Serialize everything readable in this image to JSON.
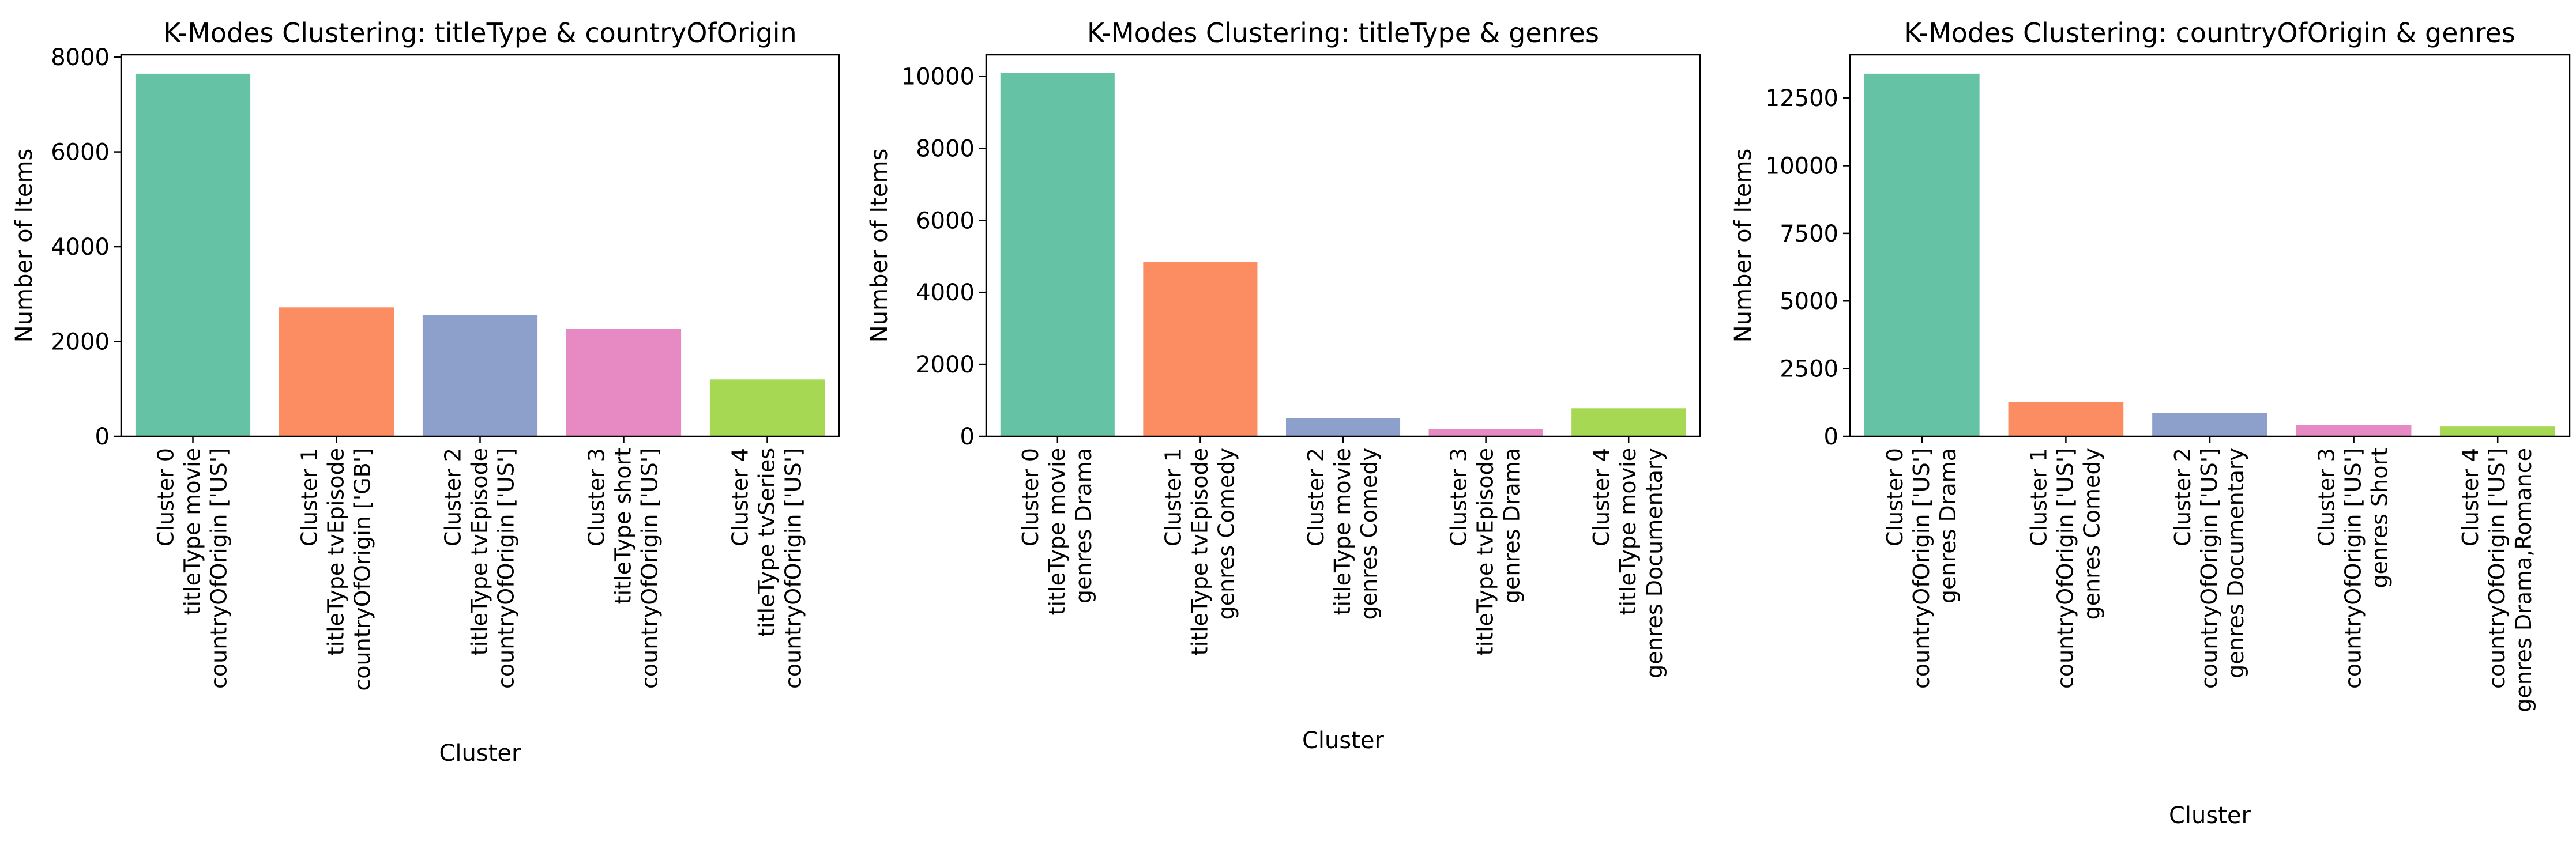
{
  "chart_data": [
    {
      "type": "bar",
      "title": "K-Modes Clustering: titleType & countryOfOrigin",
      "xlabel": "Cluster",
      "ylabel": "Number of Items",
      "ylim": [
        0,
        8050
      ],
      "yticks": [
        0,
        2000,
        4000,
        6000,
        8000
      ],
      "grid": false,
      "categories": [
        [
          "Cluster 0",
          "titleType        movie",
          "countryOfOrigin     ['US']"
        ],
        [
          "Cluster 1",
          "titleType     tvEpisode",
          "countryOfOrigin     ['GB']"
        ],
        [
          "Cluster 2",
          "titleType     tvEpisode",
          "countryOfOrigin     ['US']"
        ],
        [
          "Cluster 3",
          "titleType        short",
          "countryOfOrigin     ['US']"
        ],
        [
          "Cluster 4",
          "titleType      tvSeries",
          "countryOfOrigin     ['US']"
        ]
      ],
      "values": [
        7650,
        2720,
        2560,
        2270,
        1200
      ],
      "colors": [
        "#66c2a5",
        "#fc8d62",
        "#8da0cb",
        "#e78ac3",
        "#a6d854"
      ]
    },
    {
      "type": "bar",
      "title": "K-Modes Clustering: titleType & genres",
      "xlabel": "Cluster",
      "ylabel": "Number of Items",
      "ylim": [
        0,
        10600
      ],
      "yticks": [
        0,
        2000,
        4000,
        6000,
        8000,
        10000
      ],
      "grid": false,
      "categories": [
        [
          "Cluster 0",
          "titleType      movie",
          "genres        Drama"
        ],
        [
          "Cluster 1",
          "titleType  tvEpisode",
          "genres       Comedy"
        ],
        [
          "Cluster 2",
          "titleType      movie",
          "genres       Comedy"
        ],
        [
          "Cluster 3",
          "titleType  tvEpisode",
          "genres        Drama"
        ],
        [
          "Cluster 4",
          "titleType      movie",
          "genres   Documentary"
        ]
      ],
      "values": [
        10100,
        4840,
        500,
        200,
        780
      ],
      "colors": [
        "#66c2a5",
        "#fc8d62",
        "#8da0cb",
        "#e78ac3",
        "#a6d854"
      ]
    },
    {
      "type": "bar",
      "title": "K-Modes Clustering: countryOfOrigin & genres",
      "xlabel": "Cluster",
      "ylabel": "Number of Items",
      "ylim": [
        0,
        14100
      ],
      "yticks": [
        0,
        2500,
        5000,
        7500,
        10000,
        12500
      ],
      "grid": false,
      "categories": [
        [
          "Cluster 0",
          "countryOfOrigin    ['US']",
          "genres               Drama"
        ],
        [
          "Cluster 1",
          "countryOfOrigin    ['US']",
          "genres              Comedy"
        ],
        [
          "Cluster 2",
          "countryOfOrigin    ['US']",
          "genres         Documentary"
        ],
        [
          "Cluster 3",
          "countryOfOrigin    ['US']",
          "genres               Short"
        ],
        [
          "Cluster 4",
          "countryOfOrigin    ['US']",
          "genres       Drama,Romance"
        ]
      ],
      "values": [
        13400,
        1260,
        860,
        420,
        380
      ],
      "colors": [
        "#66c2a5",
        "#fc8d62",
        "#8da0cb",
        "#e78ac3",
        "#a6d854"
      ]
    }
  ]
}
